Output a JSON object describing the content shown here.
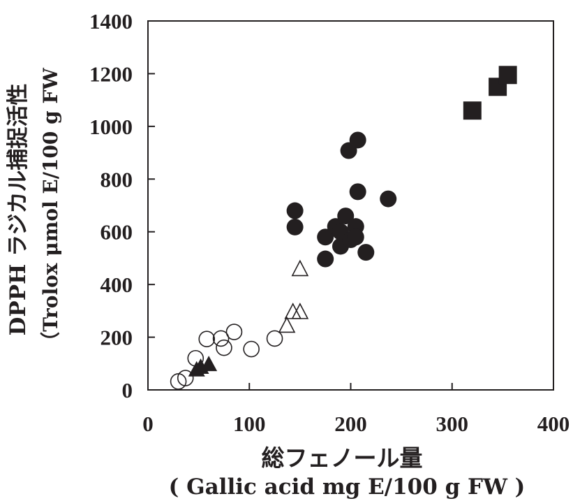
{
  "chart_data": {
    "type": "scatter",
    "title": "",
    "xlabel": "総フェノール量",
    "xlabel_sub": "( Gallic acid mg E/100 g FW )",
    "ylabel": "DPPH ラジカル捕捉活性",
    "ylabel_sub": "（Trolox μmol E/100 g FW",
    "xlim": [
      0,
      400
    ],
    "ylim": [
      0,
      1400
    ],
    "x_ticks": [
      0,
      100,
      200,
      300,
      400
    ],
    "y_ticks": [
      0,
      200,
      400,
      600,
      800,
      1000,
      1200,
      1400
    ],
    "grid": false,
    "legend": "none",
    "colors": {
      "ink": "#231f20",
      "background": "#ffffff"
    },
    "series": [
      {
        "marker": "filled-square",
        "points": [
          [
            320,
            1060
          ],
          [
            345,
            1150
          ],
          [
            355,
            1195
          ]
        ]
      },
      {
        "marker": "filled-circle",
        "points": [
          [
            145,
            680
          ],
          [
            145,
            618
          ],
          [
            175,
            580
          ],
          [
            175,
            497
          ],
          [
            185,
            620
          ],
          [
            190,
            600
          ],
          [
            190,
            545
          ],
          [
            195,
            660
          ],
          [
            200,
            570
          ],
          [
            205,
            620
          ],
          [
            205,
            580
          ],
          [
            198,
            908
          ],
          [
            207,
            948
          ],
          [
            207,
            752
          ],
          [
            215,
            522
          ],
          [
            237,
            725
          ]
        ]
      },
      {
        "marker": "open-triangle",
        "points": [
          [
            137,
            240
          ],
          [
            143,
            292
          ],
          [
            150,
            292
          ],
          [
            150,
            455
          ]
        ]
      },
      {
        "marker": "filled-triangle",
        "points": [
          [
            48,
            75
          ],
          [
            52,
            85
          ],
          [
            60,
            95
          ]
        ]
      },
      {
        "marker": "open-circle",
        "points": [
          [
            30,
            32
          ],
          [
            37,
            45
          ],
          [
            47,
            120
          ],
          [
            58,
            193
          ],
          [
            72,
            195
          ],
          [
            75,
            160
          ],
          [
            85,
            220
          ],
          [
            102,
            155
          ],
          [
            125,
            195
          ]
        ]
      }
    ]
  }
}
